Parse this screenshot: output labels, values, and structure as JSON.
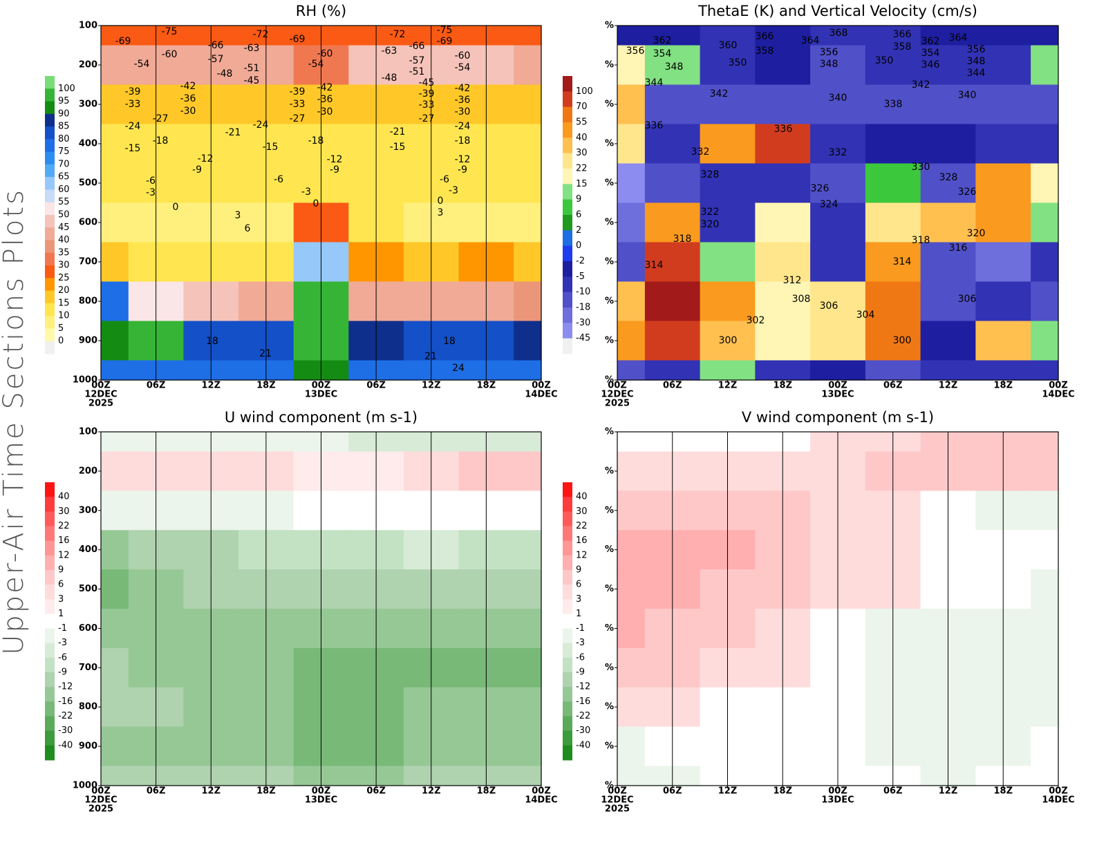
{
  "figure_title": "Upper-Air Time Sections Plots",
  "chart_data": [
    {
      "type": "heatmap",
      "title": "RH (%)",
      "xlim": [
        0,
        48
      ],
      "ylim": [
        1000,
        100
      ],
      "grid": true,
      "xticks": [
        {
          "value": 0,
          "label": [
            "00Z",
            "12DEC",
            "2025"
          ]
        },
        {
          "value": 6,
          "label": [
            "06Z"
          ]
        },
        {
          "value": 12,
          "label": [
            "12Z"
          ]
        },
        {
          "value": 18,
          "label": [
            "18Z"
          ]
        },
        {
          "value": 24,
          "label": [
            "00Z",
            "13DEC"
          ]
        },
        {
          "value": 30,
          "label": [
            "06Z"
          ]
        },
        {
          "value": 36,
          "label": [
            "12Z"
          ]
        },
        {
          "value": 42,
          "label": [
            "18Z"
          ]
        },
        {
          "value": 48,
          "label": [
            "00Z",
            "14DEC"
          ]
        }
      ],
      "yticks": [
        100,
        200,
        300,
        400,
        500,
        600,
        700,
        800,
        900,
        1000
      ],
      "colorbar": {
        "levels": [
          100,
          95,
          90,
          85,
          80,
          75,
          70,
          65,
          60,
          55,
          50,
          45,
          40,
          35,
          30,
          25,
          20,
          15,
          10,
          5,
          0
        ],
        "colors": [
          "#78dc78",
          "#36b436",
          "#148c14",
          "#0f2f8c",
          "#1450c8",
          "#1e6ee6",
          "#2d8cf0",
          "#50aaf5",
          "#96c8fa",
          "#c8dcfa",
          "#fae6e6",
          "#f5c3b9",
          "#f0aa96",
          "#eb9678",
          "#f07850",
          "#fa5a14",
          "#ff9600",
          "#ffc828",
          "#ffe650",
          "#fff07d",
          "#fffaaa",
          "#f0f0f0"
        ]
      },
      "field": {
        "pressure": [
          100,
          200,
          300,
          400,
          500,
          600,
          700,
          800,
          900,
          1000
        ],
        "time": [
          0,
          6,
          12,
          18,
          24,
          30,
          36,
          42,
          48
        ],
        "values": [
          [
            25,
            25,
            25,
            25,
            25,
            25,
            25,
            25,
            25
          ],
          [
            40,
            40,
            40,
            40,
            30,
            45,
            45,
            45,
            40
          ],
          [
            15,
            15,
            15,
            15,
            15,
            15,
            15,
            15,
            15
          ],
          [
            10,
            10,
            10,
            10,
            10,
            10,
            10,
            10,
            10
          ],
          [
            10,
            10,
            10,
            10,
            10,
            10,
            10,
            10,
            10
          ],
          [
            5,
            5,
            5,
            5,
            25,
            10,
            5,
            5,
            5
          ],
          [
            15,
            10,
            10,
            10,
            60,
            20,
            15,
            20,
            15
          ],
          [
            75,
            50,
            45,
            40,
            95,
            40,
            40,
            40,
            35
          ],
          [
            90,
            95,
            80,
            80,
            95,
            85,
            80,
            82,
            85
          ],
          [
            75,
            75,
            75,
            75,
            90,
            75,
            75,
            75,
            75
          ]
        ]
      },
      "contour_labels": [
        -69,
        -75,
        -66,
        -72,
        -69,
        -60,
        -72,
        -75,
        -63,
        -66,
        -69,
        -54,
        -60,
        -57,
        -63,
        -54,
        -57,
        -60,
        -54,
        -48,
        -51,
        -45,
        -48,
        -51,
        -45,
        -39,
        -42,
        -33,
        -36,
        -30,
        -39,
        -42,
        -33,
        -36,
        -30,
        -39,
        -42,
        -33,
        -36,
        -30,
        -27,
        -24,
        -27,
        -24,
        -21,
        -27,
        -24,
        -21,
        -18,
        -15,
        -18,
        -15,
        -15,
        -18,
        -12,
        -9,
        -12,
        -9,
        -12,
        -9,
        -6,
        -3,
        -6,
        -3,
        -6,
        -3,
        0,
        0,
        0,
        3,
        6,
        3,
        18,
        21,
        18,
        21,
        24
      ]
    },
    {
      "type": "heatmap",
      "title": "ThetaE (K) and Vertical Velocity (cm/s)",
      "xlim": [
        0,
        48
      ],
      "ylim": [
        1000,
        100
      ],
      "grid": false,
      "xticks": [
        {
          "value": 0,
          "label": [
            "00Z",
            "12DEC",
            "2025"
          ]
        },
        {
          "value": 6,
          "label": [
            "06Z"
          ]
        },
        {
          "value": 12,
          "label": [
            "12Z"
          ]
        },
        {
          "value": 18,
          "label": [
            "18Z"
          ]
        },
        {
          "value": 24,
          "label": [
            "00Z",
            "13DEC"
          ]
        },
        {
          "value": 30,
          "label": [
            "06Z"
          ]
        },
        {
          "value": 36,
          "label": [
            "12Z"
          ]
        },
        {
          "value": 42,
          "label": [
            "18Z"
          ]
        },
        {
          "value": 48,
          "label": [
            "00Z",
            "14DEC"
          ]
        }
      ],
      "yticks": [
        {
          "value": 100,
          "label": "%"
        },
        {
          "value": 200,
          "label": "%"
        },
        {
          "value": 300,
          "label": "%"
        },
        {
          "value": 400,
          "label": "%"
        },
        {
          "value": 500,
          "label": "%"
        },
        {
          "value": 600,
          "label": "%"
        },
        {
          "value": 700,
          "label": "%"
        },
        {
          "value": 800,
          "label": "%"
        },
        {
          "value": 900,
          "label": "%"
        },
        {
          "value": 1000,
          "label": "%"
        }
      ],
      "colorbar": {
        "levels": [
          100,
          70,
          55,
          40,
          30,
          22,
          15,
          9,
          6,
          2,
          0,
          -2,
          -5,
          -10,
          -18,
          -30,
          -45
        ],
        "colors": [
          "#a31a1a",
          "#d23c1e",
          "#f07814",
          "#fa9a1e",
          "#ffc050",
          "#ffe68c",
          "#fff5b4",
          "#82e182",
          "#3cc83c",
          "#1e9b1e",
          "#1e6ee6",
          "#1e3cf0",
          "#1e1ea0",
          "#3232b4",
          "#5050c8",
          "#6e6edc",
          "#8c8cf0",
          "#f0f0f0"
        ]
      },
      "field": {
        "pressure": [
          100,
          200,
          300,
          400,
          500,
          600,
          700,
          800,
          900,
          1000
        ],
        "time": [
          0,
          6,
          12,
          18,
          24,
          30,
          36,
          42,
          48
        ],
        "values": [
          [
            -5,
            -5,
            -10,
            -5,
            -10,
            -10,
            -5,
            -5,
            -5
          ],
          [
            15,
            9,
            -10,
            -5,
            -18,
            -10,
            -10,
            -10,
            9
          ],
          [
            30,
            -18,
            -18,
            -18,
            -18,
            -18,
            -18,
            -18,
            -18
          ],
          [
            22,
            -10,
            40,
            70,
            -10,
            -5,
            -5,
            -10,
            -10
          ],
          [
            -45,
            -18,
            -10,
            -10,
            -18,
            6,
            -18,
            40,
            15
          ],
          [
            -30,
            40,
            -10,
            15,
            -10,
            22,
            30,
            40,
            9
          ],
          [
            -18,
            70,
            9,
            22,
            -10,
            40,
            -18,
            -30,
            -10
          ],
          [
            30,
            100,
            40,
            15,
            22,
            55,
            -18,
            -10,
            -18
          ],
          [
            40,
            70,
            30,
            15,
            22,
            55,
            -5,
            30,
            9
          ],
          [
            -18,
            -10,
            9,
            -10,
            -5,
            -18,
            -10,
            -10,
            -10
          ]
        ]
      },
      "contour_labels": [
        362,
        360,
        366,
        368,
        366,
        362,
        364,
        356,
        354,
        358,
        364,
        356,
        358,
        354,
        356,
        348,
        350,
        348,
        350,
        346,
        348,
        344,
        344,
        342,
        342,
        340,
        338,
        340,
        336,
        336,
        332,
        332,
        330,
        328,
        328,
        326,
        326,
        324,
        322,
        320,
        320,
        318,
        318,
        316,
        314,
        314,
        312,
        308,
        306,
        306,
        304,
        302,
        300,
        300
      ]
    },
    {
      "type": "heatmap",
      "title": "U wind component (m s-1)",
      "xlim": [
        0,
        48
      ],
      "ylim": [
        1000,
        100
      ],
      "grid": true,
      "xticks": [
        {
          "value": 0,
          "label": [
            "00Z",
            "12DEC",
            "2025"
          ]
        },
        {
          "value": 6,
          "label": [
            "06Z"
          ]
        },
        {
          "value": 12,
          "label": [
            "12Z"
          ]
        },
        {
          "value": 18,
          "label": [
            "18Z"
          ]
        },
        {
          "value": 24,
          "label": [
            "00Z",
            "13DEC"
          ]
        },
        {
          "value": 30,
          "label": [
            "06Z"
          ]
        },
        {
          "value": 36,
          "label": [
            "12Z"
          ]
        },
        {
          "value": 42,
          "label": [
            "18Z"
          ]
        },
        {
          "value": 48,
          "label": [
            "00Z",
            "14DEC"
          ]
        }
      ],
      "yticks": [
        100,
        200,
        300,
        400,
        500,
        600,
        700,
        800,
        900,
        1000
      ],
      "colorbar": {
        "levels": [
          40,
          30,
          22,
          16,
          12,
          9,
          6,
          3,
          1,
          -1,
          -3,
          -6,
          -9,
          -12,
          -16,
          -22,
          -30,
          -40
        ],
        "colors": [
          "#ff1414",
          "#ff3c3c",
          "#ff5a5a",
          "#ff7878",
          "#ff9696",
          "#ffafaf",
          "#ffc8c8",
          "#ffdcdc",
          "#ffebeb",
          "#ffffff",
          "#ebf5eb",
          "#d7ebd7",
          "#c3e1c3",
          "#afd2af",
          "#96c896",
          "#78b978",
          "#5aaa5a",
          "#3c9b3c",
          "#1e8c1e"
        ]
      },
      "field": {
        "pressure": [
          100,
          200,
          300,
          400,
          500,
          600,
          700,
          800,
          900,
          1000
        ],
        "time": [
          0,
          6,
          12,
          18,
          24,
          30,
          36,
          42,
          48
        ],
        "values": [
          [
            -3,
            -3,
            -3,
            -3,
            -3,
            -6,
            -6,
            -6,
            -6
          ],
          [
            3,
            3,
            3,
            3,
            1,
            1,
            3,
            6,
            6
          ],
          [
            -3,
            -3,
            -3,
            -3,
            -1,
            -1,
            -1,
            0,
            0
          ],
          [
            -16,
            -12,
            -12,
            -9,
            -9,
            -9,
            -6,
            -9,
            -9
          ],
          [
            -22,
            -16,
            -12,
            -12,
            -12,
            -12,
            -12,
            -12,
            -12
          ],
          [
            -16,
            -16,
            -16,
            -16,
            -16,
            -16,
            -16,
            -16,
            -16
          ],
          [
            -12,
            -16,
            -16,
            -16,
            -22,
            -22,
            -22,
            -22,
            -22
          ],
          [
            -12,
            -12,
            -16,
            -16,
            -22,
            -22,
            -16,
            -16,
            -16
          ],
          [
            -16,
            -16,
            -16,
            -16,
            -22,
            -22,
            -16,
            -16,
            -16
          ],
          [
            -12,
            -12,
            -12,
            -12,
            -16,
            -16,
            -12,
            -12,
            -12
          ]
        ]
      }
    },
    {
      "type": "heatmap",
      "title": "V wind component (m s-1)",
      "xlim": [
        0,
        48
      ],
      "ylim": [
        1000,
        100
      ],
      "grid": true,
      "xticks": [
        {
          "value": 0,
          "label": [
            "00Z",
            "12DEC",
            "2025"
          ]
        },
        {
          "value": 6,
          "label": [
            "06Z"
          ]
        },
        {
          "value": 12,
          "label": [
            "12Z"
          ]
        },
        {
          "value": 18,
          "label": [
            "18Z"
          ]
        },
        {
          "value": 24,
          "label": [
            "00Z",
            "13DEC"
          ]
        },
        {
          "value": 30,
          "label": [
            "06Z"
          ]
        },
        {
          "value": 36,
          "label": [
            "12Z"
          ]
        },
        {
          "value": 42,
          "label": [
            "18Z"
          ]
        },
        {
          "value": 48,
          "label": [
            "00Z",
            "14DEC"
          ]
        }
      ],
      "yticks": [
        {
          "value": 100,
          "label": "%"
        },
        {
          "value": 200,
          "label": "%"
        },
        {
          "value": 300,
          "label": "%"
        },
        {
          "value": 400,
          "label": "%"
        },
        {
          "value": 500,
          "label": "%"
        },
        {
          "value": 600,
          "label": "%"
        },
        {
          "value": 700,
          "label": "%"
        },
        {
          "value": 800,
          "label": "%"
        },
        {
          "value": 900,
          "label": "%"
        },
        {
          "value": 1000,
          "label": "%"
        }
      ],
      "colorbar": {
        "levels": [
          40,
          30,
          22,
          16,
          12,
          9,
          6,
          3,
          1,
          -1,
          -3,
          -6,
          -9,
          -12,
          -16,
          -22,
          -30,
          -40
        ],
        "colors": [
          "#ff1414",
          "#ff3c3c",
          "#ff5a5a",
          "#ff7878",
          "#ff9696",
          "#ffafaf",
          "#ffc8c8",
          "#ffdcdc",
          "#ffebeb",
          "#ffffff",
          "#ebf5eb",
          "#d7ebd7",
          "#c3e1c3",
          "#afd2af",
          "#96c896",
          "#78b978",
          "#5aaa5a",
          "#3c9b3c",
          "#1e8c1e"
        ]
      },
      "field": {
        "pressure": [
          100,
          200,
          300,
          400,
          500,
          600,
          700,
          800,
          900,
          1000
        ],
        "time": [
          0,
          6,
          12,
          18,
          24,
          30,
          36,
          42,
          48
        ],
        "values": [
          [
            -1,
            0,
            0,
            0,
            3,
            3,
            6,
            6,
            6
          ],
          [
            3,
            3,
            3,
            3,
            3,
            6,
            6,
            6,
            6
          ],
          [
            6,
            6,
            6,
            6,
            3,
            3,
            0,
            -3,
            -3
          ],
          [
            9,
            9,
            9,
            6,
            3,
            3,
            0,
            0,
            0
          ],
          [
            9,
            9,
            6,
            6,
            3,
            3,
            0,
            0,
            -3
          ],
          [
            9,
            6,
            6,
            3,
            0,
            -3,
            -3,
            -3,
            -3
          ],
          [
            6,
            6,
            3,
            3,
            0,
            -3,
            -3,
            -3,
            -3
          ],
          [
            3,
            3,
            0,
            0,
            0,
            -3,
            -3,
            -3,
            -3
          ],
          [
            -3,
            0,
            0,
            0,
            0,
            -3,
            -3,
            -3,
            -1
          ],
          [
            -3,
            -3,
            0,
            0,
            0,
            -1,
            -3,
            -1,
            -1
          ]
        ]
      }
    }
  ]
}
